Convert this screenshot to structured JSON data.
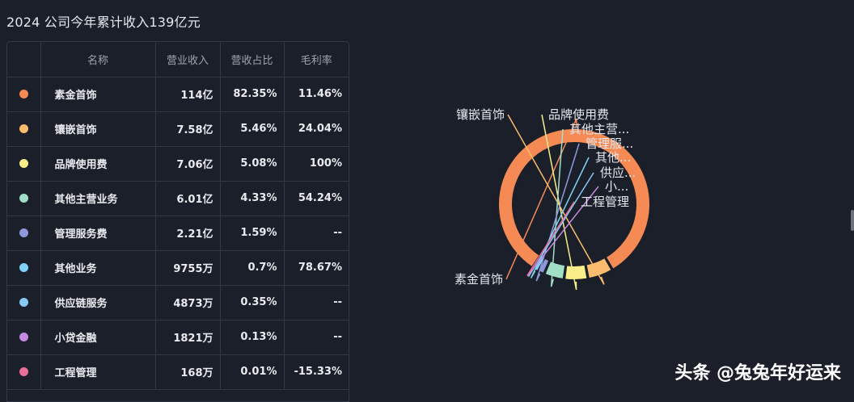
{
  "title": "2024 公司今年累计收入139亿元",
  "table": {
    "headers": [
      "",
      "名称",
      "营业收入",
      "营收占比",
      "毛利率"
    ],
    "rows": [
      {
        "color": "#f58a55",
        "name": "素金首饰",
        "revenue": "114亿",
        "share": "82.35%",
        "margin": "11.46%"
      },
      {
        "color": "#fbbc6e",
        "name": "镶嵌首饰",
        "revenue": "7.58亿",
        "share": "5.46%",
        "margin": "24.04%"
      },
      {
        "color": "#fbee8a",
        "name": "品牌使用费",
        "revenue": "7.06亿",
        "share": "5.08%",
        "margin": "100%"
      },
      {
        "color": "#a2dfc7",
        "name": "其他主营业务",
        "revenue": "6.01亿",
        "share": "4.33%",
        "margin": "54.24%"
      },
      {
        "color": "#8e99dc",
        "name": "管理服务费",
        "revenue": "2.21亿",
        "share": "1.59%",
        "margin": "--"
      },
      {
        "color": "#7fd2f5",
        "name": "其他业务",
        "revenue": "9755万",
        "share": "0.7%",
        "margin": "78.67%"
      },
      {
        "color": "#86c8f5",
        "name": "供应链服务",
        "revenue": "4873万",
        "share": "0.35%",
        "margin": "--"
      },
      {
        "color": "#c589e0",
        "name": "小贷金融",
        "revenue": "1821万",
        "share": "0.13%",
        "margin": "--"
      },
      {
        "color": "#ea6f98",
        "name": "工程管理",
        "revenue": "168万",
        "share": "0.01%",
        "margin": "-15.33%"
      }
    ]
  },
  "chart_data": {
    "type": "pie",
    "title": "",
    "categories": [
      "素金首饰",
      "镶嵌首饰",
      "品牌使用费",
      "其他主营业务",
      "管理服务费",
      "其他业务",
      "供应链服务",
      "小贷金融",
      "工程管理"
    ],
    "labels": [
      "素金首饰",
      "镶嵌首饰",
      "品牌使用费",
      "其他主营...",
      "管理服...",
      "其他...",
      "供应...",
      "小...",
      "工程管理"
    ],
    "values": [
      82.35,
      5.46,
      5.08,
      4.33,
      1.59,
      0.7,
      0.35,
      0.13,
      0.01
    ],
    "colors": [
      "#f58a55",
      "#fbbc6e",
      "#fbee8a",
      "#a2dfc7",
      "#8e99dc",
      "#7fd2f5",
      "#86c8f5",
      "#c589e0",
      "#ea6f98"
    ],
    "donut": true
  },
  "watermark": "头条 @兔兔年好运来"
}
